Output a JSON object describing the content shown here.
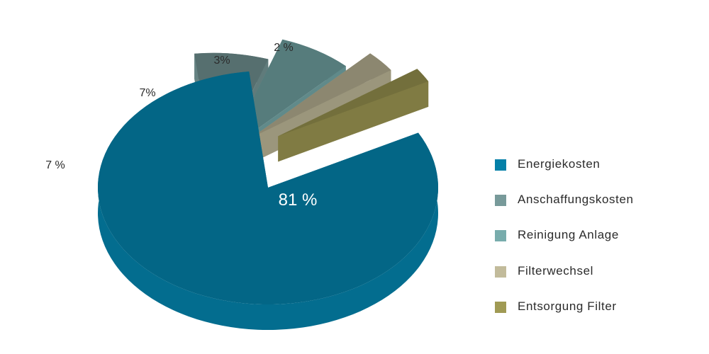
{
  "chart_data": {
    "type": "pie",
    "title": "",
    "slices": [
      {
        "label": "Energiekosten",
        "value": 81,
        "value_label": "81 %",
        "color": "#0480a8"
      },
      {
        "label": "Anschaffungskosten",
        "value": 7,
        "value_label": "7 %",
        "color": "#789a9a"
      },
      {
        "label": "Reinigung Anlage",
        "value": 7,
        "value_label": "7%",
        "color": "#78acac"
      },
      {
        "label": "Filterwechsel",
        "value": 3,
        "value_label": "3%",
        "color": "#c2bb9b"
      },
      {
        "label": "Entsorgung Filter",
        "value": 2,
        "value_label": "2 %",
        "color": "#a09a54"
      }
    ],
    "legend_position": "right",
    "style": "3d-exploded"
  },
  "legend": {
    "items": [
      {
        "label": "Energiekosten",
        "color": "#0480a8"
      },
      {
        "label": "Anschaffungskosten",
        "color": "#789a9a"
      },
      {
        "label": "Reinigung Anlage",
        "color": "#78acac"
      },
      {
        "label": "Filterwechsel",
        "color": "#c2bb9b"
      },
      {
        "label": "Entsorgung Filter",
        "color": "#a09a54"
      }
    ]
  }
}
